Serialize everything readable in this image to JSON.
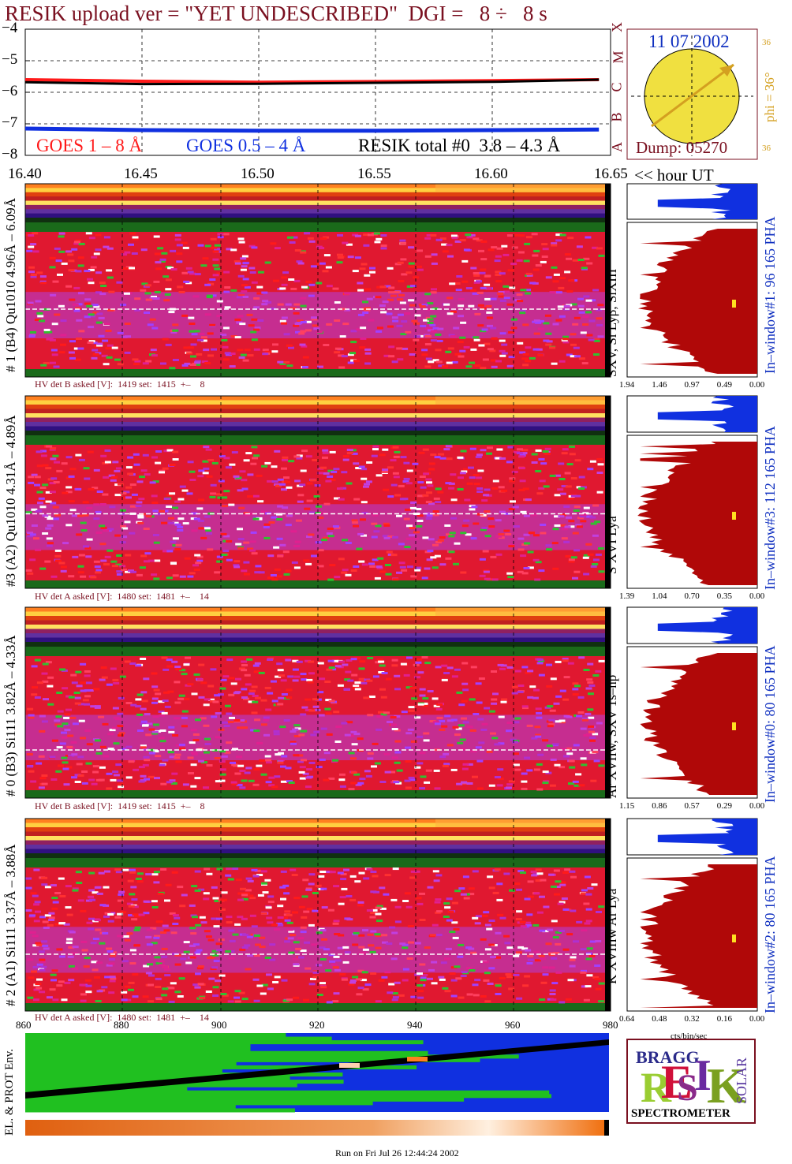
{
  "header": {
    "title": "RESIK upload ver = \"YET UNDESCRIBED\"  DGI =   8 ÷   8 s"
  },
  "goes_panel": {
    "legend_goes_long": "GOES 1 – 8 Å",
    "legend_goes_short": "GOES 0.5 – 4 Å",
    "legend_resik": "RESIK total #0  3.8 – 4.3 Å",
    "y_ticks": [
      "−4",
      "−5",
      "−6",
      "−7",
      "−8"
    ],
    "class_letters": [
      "A",
      "B",
      "C",
      "M",
      "X"
    ],
    "colors": {
      "goes_long": "#ff1a1a",
      "goes_short": "#1030e0",
      "resik": "#000000"
    }
  },
  "sun_panel": {
    "date": "11 07 2002",
    "dump": "Dump: 05270",
    "phi_label": "phi = 36°",
    "small_top": "36",
    "small_bottom": "36"
  },
  "time_axis": {
    "ticks": [
      "16.40",
      "16.45",
      "16.50",
      "16.55",
      "16.60",
      "16.65"
    ],
    "unit_label": "<< hour UT"
  },
  "channels": [
    {
      "ylabel": "# 1 (B4) Qu1010 4.96Å – 6.09Å",
      "lines": "SXV, Si Lyβ, SiXIII",
      "pha_label": "In–window#1:   96 165 PHA",
      "hv": "HV det B asked [V]:  1419 set:  1415  +–    8",
      "pha_ticks": [
        "1.94",
        "1.46",
        "0.97",
        "0.49",
        "0.00"
      ]
    },
    {
      "ylabel": "#3 (A2) Qu1010  4.31Å – 4.89Å",
      "lines": "S XVI Lya",
      "pha_label": "In–window#3:  112 165 PHA",
      "hv": "HV det A asked [V]:  1480 set:  1481  +–    14",
      "pha_ticks": [
        "1.39",
        "1.04",
        "0.70",
        "0.35",
        "0.00"
      ]
    },
    {
      "ylabel": "# 0 (B3) Si111  3.82Å – 4.33Å",
      "lines": "Ar XVIIw,  SXV 1s–np",
      "pha_label": "In–window#0:   80 165 PHA",
      "hv": "HV det B asked [V]:  1419 set:  1415  +–    8",
      "pha_ticks": [
        "1.15",
        "0.86",
        "0.57",
        "0.29",
        "0.00"
      ]
    },
    {
      "ylabel": "# 2 (A1) Si111  3.37Å – 3.88Å",
      "lines": "K XVIIIw   Ar Lya",
      "pha_label": "In–window#2:   80 165 PHA",
      "hv": "HV det A asked [V]:  1480 set:  1481  +–    14",
      "pha_ticks": [
        "0.64",
        "0.48",
        "0.32",
        "0.16",
        "0.00"
      ]
    }
  ],
  "pha_axis_label": "cts/bin/sec",
  "env_panel": {
    "ylabel": "EL. & PROT Env.",
    "x_ticks": [
      "860",
      "880",
      "900",
      "920",
      "940",
      "960",
      "980"
    ]
  },
  "logo": {
    "letters": [
      "R",
      "E",
      "S",
      "I",
      "K"
    ],
    "bragg": "BRAGG",
    "solar": "SOLAR",
    "caption": "SPECTROMETER"
  },
  "footer": {
    "run_on": "Run on Fri Jul 26 12:44:24 2002"
  },
  "chart_data": [
    {
      "type": "line",
      "title": "RESIK upload ver = \"YET UNDESCRIBED\"  DGI =   8 ÷   8 s",
      "xlabel": "<< hour UT",
      "x": [
        16.4,
        16.45,
        16.5,
        16.55,
        16.6,
        16.645
      ],
      "xlim": [
        16.4,
        16.65
      ],
      "ylim": [
        -8,
        -4
      ],
      "series": [
        {
          "name": "GOES 1 – 8 Å",
          "values": [
            -5.6,
            -5.65,
            -5.68,
            -5.66,
            -5.63,
            -5.6
          ]
        },
        {
          "name": "GOES 0.5 – 4 Å",
          "values": [
            -7.15,
            -7.2,
            -7.22,
            -7.22,
            -7.2,
            -7.18
          ]
        },
        {
          "name": "RESIK total #0  3.8 – 4.3 Å",
          "values": [
            -5.68,
            -5.74,
            -5.73,
            -5.7,
            -5.67,
            -5.6
          ]
        }
      ],
      "grid": true
    },
    {
      "type": "heatmap",
      "xlabel": "<< hour UT",
      "xlim": [
        16.4,
        16.65
      ],
      "panels": [
        "# 1 (B4) Qu1010 4.96Å – 6.09Å",
        "#3 (A2) Qu1010  4.31Å – 4.89Å",
        "# 0 (B3) Si111  3.82Å – 4.33Å",
        "# 2 (A1) Si111  3.37Å – 3.88Å"
      ]
    },
    {
      "type": "area",
      "xlabel": "cts/bin/sec",
      "panels": [
        {
          "name": "In–window#1:   96 165 PHA",
          "xlim": [
            1.94,
            0.0
          ]
        },
        {
          "name": "In–window#3:  112 165 PHA",
          "xlim": [
            1.39,
            0.0
          ]
        },
        {
          "name": "In–window#0:   80 165 PHA",
          "xlim": [
            1.15,
            0.0
          ]
        },
        {
          "name": "In–window#2:   80 165 PHA",
          "xlim": [
            0.64,
            0.0
          ]
        }
      ]
    },
    {
      "type": "heatmap",
      "ylabel": "EL. & PROT Env.",
      "xlim": [
        860,
        980
      ]
    }
  ]
}
